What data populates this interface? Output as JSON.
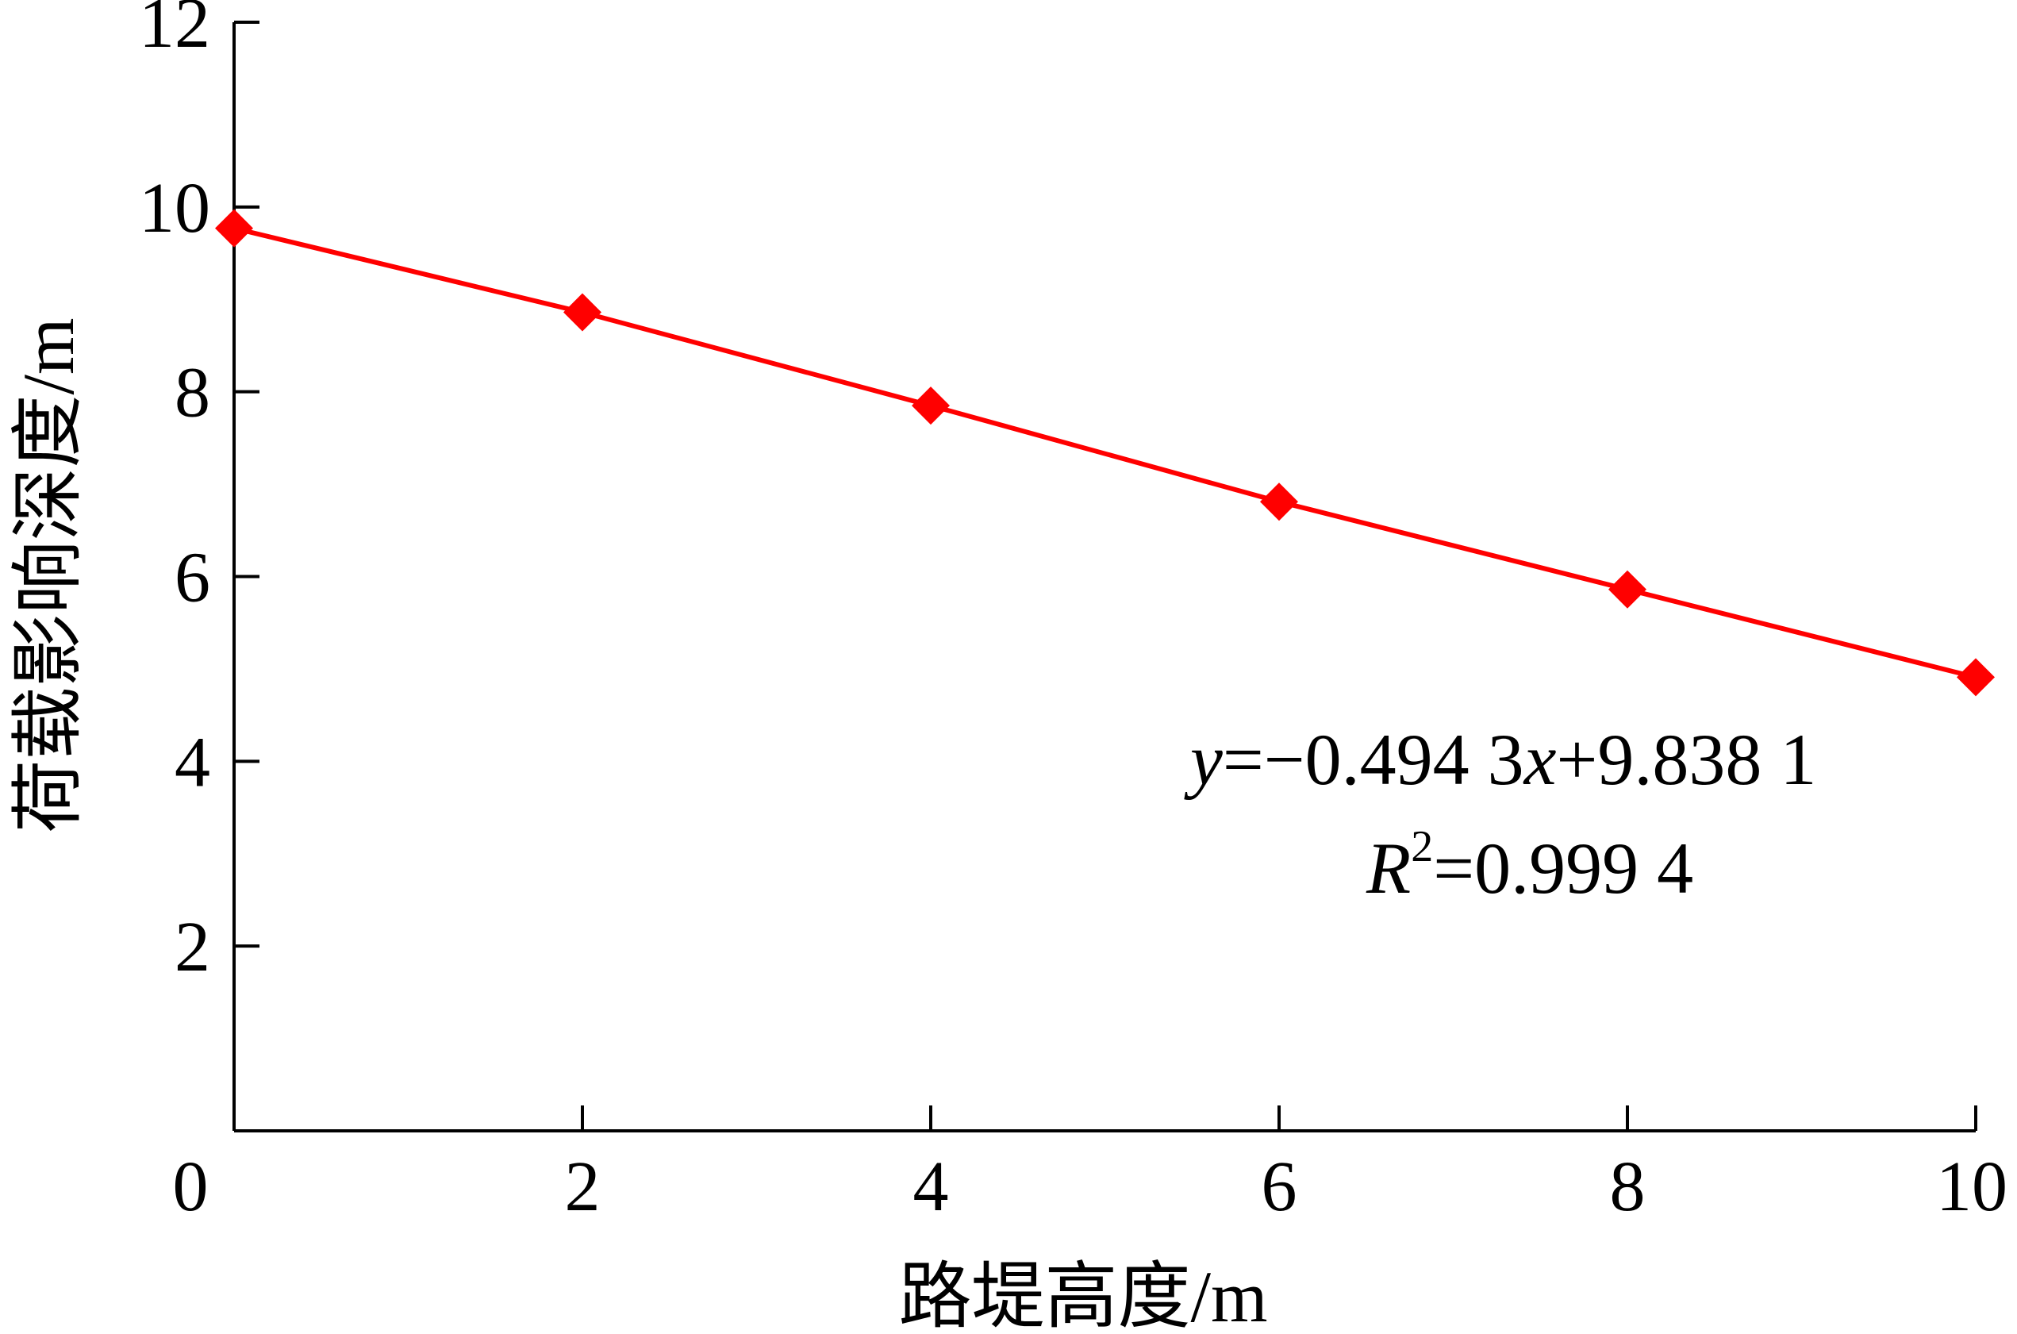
{
  "chart_data": {
    "type": "line",
    "title": "",
    "xlabel": "路堤高度/m",
    "ylabel": "荷载影响深度/m",
    "xlim": [
      0,
      10
    ],
    "ylim": [
      0,
      12
    ],
    "x_ticks": [
      0,
      2,
      4,
      6,
      8,
      10
    ],
    "y_ticks": [
      2,
      4,
      6,
      8,
      10,
      12
    ],
    "x_tick_labels": [
      "0",
      "2",
      "4",
      "6",
      "8",
      "10"
    ],
    "y_tick_labels": [
      "2",
      "4",
      "6",
      "8",
      "10",
      "12"
    ],
    "grid": false,
    "legend": "none",
    "series": [
      {
        "color": "#ff0000",
        "marker": "diamond",
        "x": [
          0,
          2,
          4,
          6,
          8,
          10
        ],
        "y": [
          9.77,
          8.86,
          7.85,
          6.81,
          5.86,
          4.91
        ]
      }
    ],
    "annotations": {
      "equation": {
        "y_var": "y",
        "eq1": "=−0.494 3",
        "x_var": "x",
        "eq2": "+9.838 1"
      },
      "r2": {
        "r_var": "R",
        "sup": "2",
        "value": "=0.999 4"
      }
    }
  }
}
